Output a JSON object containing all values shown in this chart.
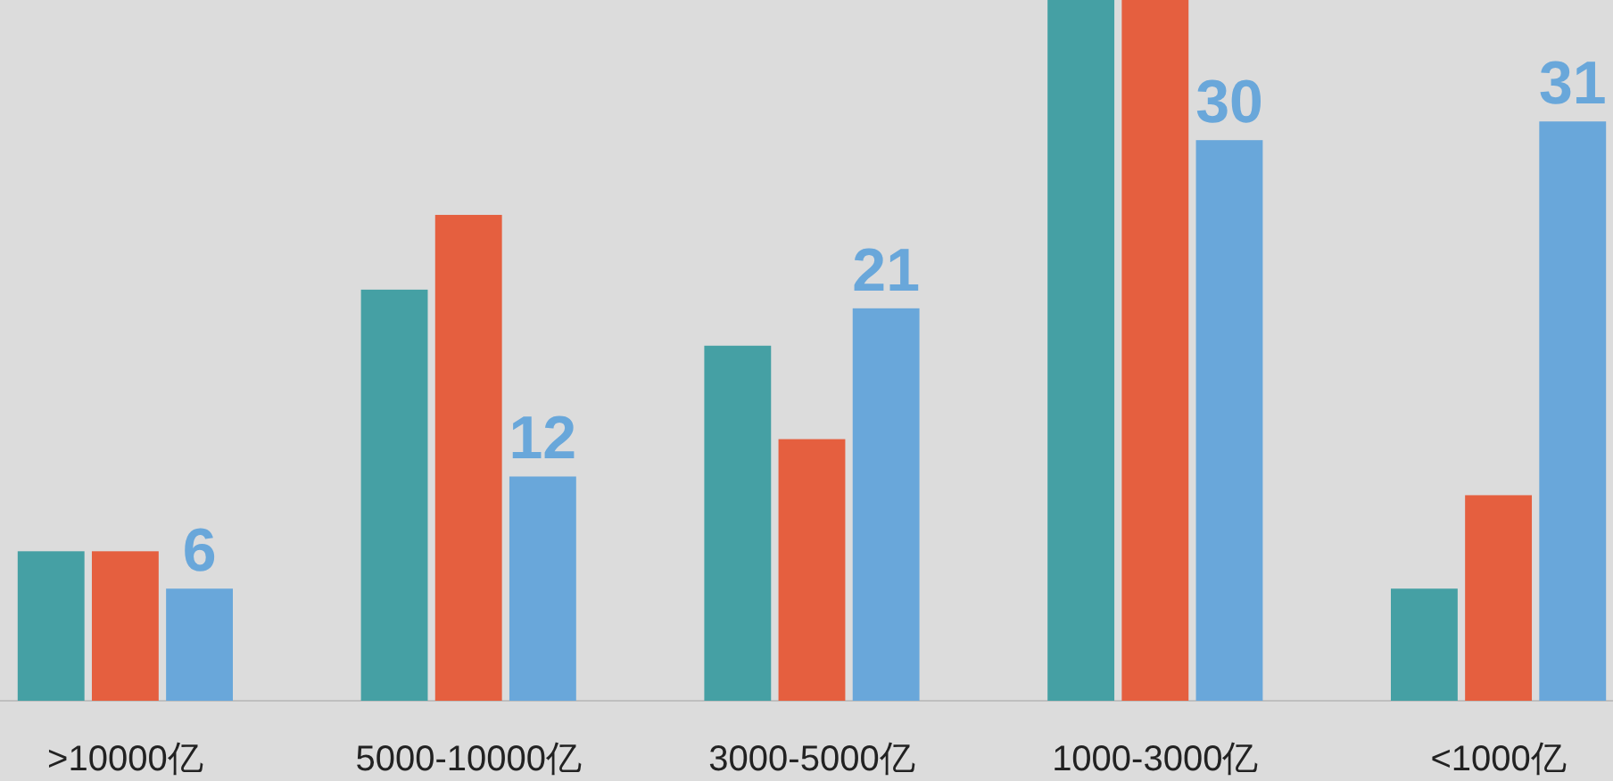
{
  "chart_data": {
    "type": "bar",
    "categories": [
      ">10000亿",
      "5000-10000亿",
      "3000-5000亿",
      "1000-3000亿",
      "<1000亿"
    ],
    "ylim": [
      0,
      37.5
    ],
    "series": [
      {
        "color": "#45a0a4",
        "values": [
          8,
          22,
          19,
          37.5,
          6
        ]
      },
      {
        "color": "#e55f3f",
        "values": [
          8,
          26,
          14,
          37.5,
          11
        ]
      },
      {
        "color": "#69a7da",
        "values": [
          6,
          12,
          21,
          30,
          31
        ],
        "value_labels": [
          "6",
          "12",
          "21",
          "30",
          "31"
        ]
      }
    ]
  }
}
